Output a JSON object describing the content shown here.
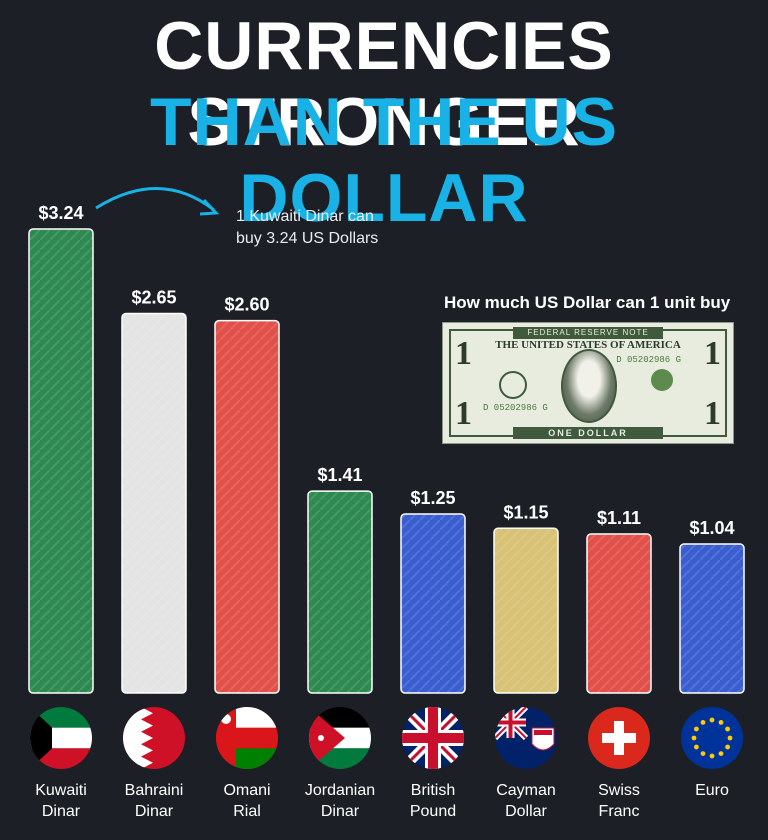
{
  "header": {
    "line1": "CURRENCIES STRONGER",
    "line2": "THAN THE US DOLLAR"
  },
  "annotation": {
    "line1": "1 Kuwaiti Dinar can",
    "line2": "buy 3.24 US Dollars"
  },
  "usd_caption": "How much US Dollar can 1 unit buy",
  "bill": {
    "top": "FEDERAL RESERVE NOTE",
    "header": "THE UNITED STATES OF AMERICA",
    "serial": "D 05202986 G",
    "denomination": "1",
    "bottom": "ONE DOLLAR"
  },
  "colors": {
    "background": "#1c1f26",
    "title_white": "#ffffff",
    "title_blue": "#19b2e6",
    "arrow": "#19b2e6"
  },
  "chart_data": {
    "type": "bar",
    "title": "CURRENCIES STRONGER THAN THE US DOLLAR",
    "ylabel": "",
    "xlabel": "",
    "ylim": [
      0,
      3.24
    ],
    "categories": [
      "Kuwaiti Dinar",
      "Bahraini Dinar",
      "Omani Rial",
      "Jordanian Dinar",
      "British Pound",
      "Cayman Dollar",
      "Swiss Franc",
      "Euro"
    ],
    "values": [
      3.24,
      2.65,
      2.6,
      1.41,
      1.25,
      1.15,
      1.11,
      1.04
    ],
    "value_labels": [
      "$3.24",
      "$2.65",
      "$2.60",
      "$1.41",
      "$1.25",
      "$1.15",
      "$1.11",
      "$1.04"
    ],
    "label_lines": [
      [
        "Kuwaiti",
        "Dinar"
      ],
      [
        "Bahraini",
        "Dinar"
      ],
      [
        "Omani",
        "Rial"
      ],
      [
        "Jordanian",
        "Dinar"
      ],
      [
        "British",
        "Pound"
      ],
      [
        "Cayman",
        "Dollar"
      ],
      [
        "Swiss",
        "Franc"
      ],
      [
        "Euro"
      ]
    ],
    "bar_colors": [
      "#2f8a52",
      "#e4e4e4",
      "#e2504a",
      "#2f8a52",
      "#3a5ed0",
      "#d8c275",
      "#e2504a",
      "#3a5ed0"
    ],
    "flags": [
      "kuwait-flag",
      "bahrain-flag",
      "oman-flag",
      "jordan-flag",
      "uk-flag",
      "cayman-flag",
      "swiss-flag",
      "eu-flag"
    ],
    "grid": false,
    "legend": "none"
  }
}
